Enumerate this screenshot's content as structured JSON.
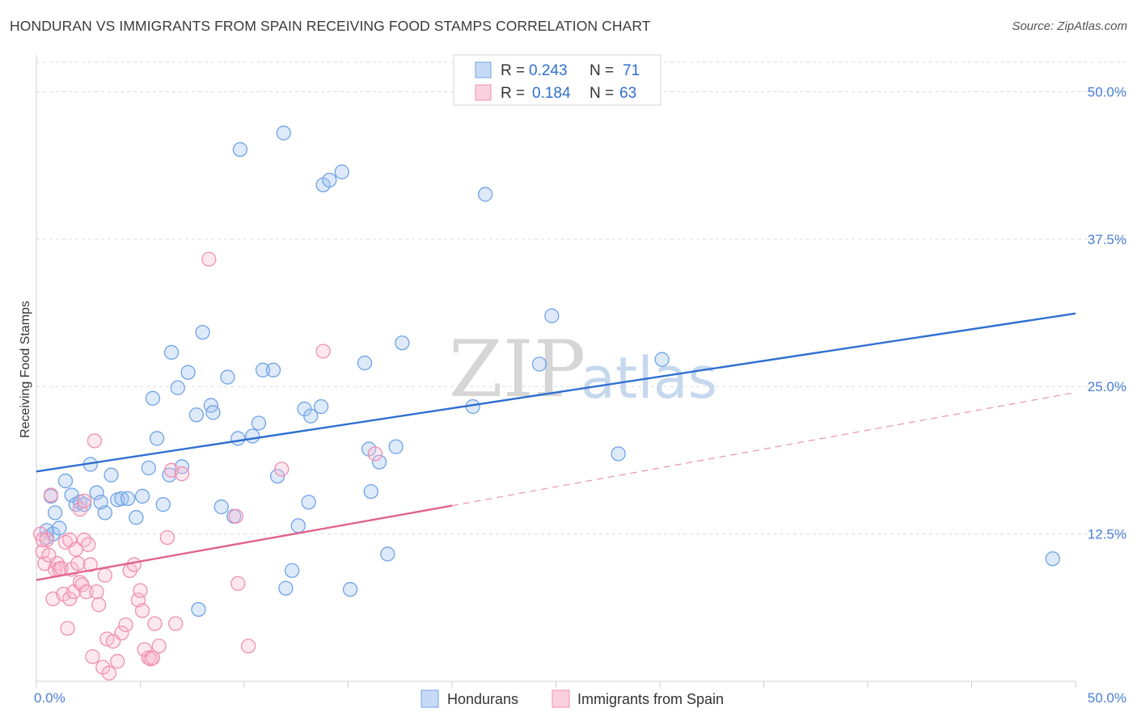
{
  "title": "HONDURAN VS IMMIGRANTS FROM SPAIN RECEIVING FOOD STAMPS CORRELATION CHART",
  "source": "Source: ZipAtlas.com",
  "watermark": {
    "zip": "ZIP",
    "atlas": "atlas"
  },
  "colors": {
    "blue": "#6fa3e6",
    "blue_line": "#2f6fd0",
    "pink": "#f08fb0",
    "pink_line": "#e0648e",
    "axis_label": "#4a7fd4"
  },
  "legend": {
    "r_label": "R = ",
    "n_label": "N = ",
    "rows": [
      {
        "r": "0.243",
        "n": "71"
      },
      {
        "r": "0.184",
        "n": "63"
      }
    ]
  },
  "chart_data": {
    "type": "scatter",
    "ylabel": "Receiving Food Stamps",
    "xlim": [
      0,
      50
    ],
    "ylim": [
      0,
      52.5
    ],
    "x_tick_labels": [
      "0.0%",
      "50.0%"
    ],
    "y_ticks": [
      12.5,
      25.0,
      37.5,
      50.0
    ],
    "y_tick_labels": [
      "12.5%",
      "25.0%",
      "37.5%",
      "50.0%"
    ],
    "grid": true,
    "legend_position": "top-center",
    "series": [
      {
        "name": "Hondurans",
        "trend": {
          "x": [
            0,
            50
          ],
          "y": [
            17.8,
            31.2
          ],
          "style": "solid"
        },
        "points": [
          [
            0.5,
            12.8
          ],
          [
            0.5,
            12.2
          ],
          [
            0.7,
            15.7
          ],
          [
            0.8,
            12.5
          ],
          [
            0.9,
            14.3
          ],
          [
            1.1,
            13.0
          ],
          [
            1.4,
            17.0
          ],
          [
            1.7,
            15.8
          ],
          [
            1.9,
            15.0
          ],
          [
            2.1,
            15.2
          ],
          [
            2.3,
            15.0
          ],
          [
            2.6,
            18.4
          ],
          [
            2.9,
            16.0
          ],
          [
            3.1,
            15.2
          ],
          [
            3.3,
            14.3
          ],
          [
            3.6,
            17.5
          ],
          [
            3.9,
            15.4
          ],
          [
            4.1,
            15.5
          ],
          [
            4.4,
            15.5
          ],
          [
            4.8,
            13.9
          ],
          [
            5.1,
            15.7
          ],
          [
            5.4,
            18.1
          ],
          [
            5.6,
            24.0
          ],
          [
            5.8,
            20.6
          ],
          [
            6.1,
            15.0
          ],
          [
            6.4,
            17.5
          ],
          [
            6.5,
            27.9
          ],
          [
            6.8,
            24.9
          ],
          [
            7.0,
            18.2
          ],
          [
            7.3,
            26.2
          ],
          [
            7.8,
            6.1
          ],
          [
            7.7,
            22.6
          ],
          [
            8.0,
            29.6
          ],
          [
            8.4,
            23.4
          ],
          [
            8.5,
            22.8
          ],
          [
            8.9,
            14.8
          ],
          [
            9.2,
            25.8
          ],
          [
            9.5,
            14.0
          ],
          [
            9.7,
            20.6
          ],
          [
            9.8,
            45.1
          ],
          [
            10.4,
            20.8
          ],
          [
            10.7,
            21.9
          ],
          [
            10.9,
            26.4
          ],
          [
            11.4,
            26.4
          ],
          [
            11.6,
            17.4
          ],
          [
            11.9,
            46.5
          ],
          [
            12.0,
            7.9
          ],
          [
            12.3,
            9.4
          ],
          [
            12.6,
            13.2
          ],
          [
            12.9,
            23.1
          ],
          [
            13.1,
            15.2
          ],
          [
            13.2,
            22.5
          ],
          [
            13.7,
            23.3
          ],
          [
            13.8,
            42.1
          ],
          [
            14.1,
            42.5
          ],
          [
            14.7,
            43.2
          ],
          [
            15.1,
            7.8
          ],
          [
            15.8,
            27.0
          ],
          [
            16.0,
            19.7
          ],
          [
            16.1,
            16.1
          ],
          [
            16.5,
            18.6
          ],
          [
            16.9,
            10.8
          ],
          [
            17.3,
            19.9
          ],
          [
            17.6,
            28.7
          ],
          [
            21.0,
            23.3
          ],
          [
            21.6,
            41.3
          ],
          [
            24.2,
            26.9
          ],
          [
            24.8,
            31.0
          ],
          [
            28.0,
            19.3
          ],
          [
            30.1,
            27.3
          ],
          [
            48.9,
            10.4
          ]
        ]
      },
      {
        "name": "Immigrants from Spain",
        "trend": {
          "x": [
            0,
            20
          ],
          "y": [
            8.6,
            14.9
          ],
          "style": "solid"
        },
        "trend_ext": {
          "x": [
            20,
            50
          ],
          "y": [
            14.9,
            24.5
          ],
          "style": "dashed"
        },
        "points": [
          [
            0.2,
            12.5
          ],
          [
            0.3,
            11.0
          ],
          [
            0.4,
            10.0
          ],
          [
            0.5,
            12.0
          ],
          [
            0.6,
            10.7
          ],
          [
            0.7,
            15.8
          ],
          [
            0.8,
            7.0
          ],
          [
            0.9,
            9.5
          ],
          [
            1.0,
            10.0
          ],
          [
            1.1,
            9.5
          ],
          [
            1.2,
            9.6
          ],
          [
            1.3,
            7.4
          ],
          [
            1.4,
            11.8
          ],
          [
            1.5,
            4.5
          ],
          [
            1.6,
            7.0
          ],
          [
            1.6,
            12.0
          ],
          [
            1.7,
            9.5
          ],
          [
            1.8,
            7.6
          ],
          [
            1.9,
            11.2
          ],
          [
            2.0,
            10.0
          ],
          [
            2.1,
            14.6
          ],
          [
            2.1,
            8.4
          ],
          [
            2.2,
            8.2
          ],
          [
            2.3,
            15.3
          ],
          [
            2.3,
            12.0
          ],
          [
            2.4,
            7.6
          ],
          [
            2.5,
            11.6
          ],
          [
            2.6,
            9.9
          ],
          [
            2.7,
            2.1
          ],
          [
            2.8,
            20.4
          ],
          [
            2.9,
            7.6
          ],
          [
            3.0,
            6.5
          ],
          [
            3.2,
            1.2
          ],
          [
            3.3,
            9.0
          ],
          [
            3.4,
            3.6
          ],
          [
            3.5,
            0.7
          ],
          [
            3.7,
            3.4
          ],
          [
            3.9,
            1.7
          ],
          [
            4.1,
            4.1
          ],
          [
            4.3,
            4.8
          ],
          [
            4.5,
            9.4
          ],
          [
            4.7,
            9.9
          ],
          [
            4.9,
            6.9
          ],
          [
            5.0,
            7.7
          ],
          [
            5.1,
            6.0
          ],
          [
            5.2,
            2.7
          ],
          [
            5.4,
            2.0
          ],
          [
            5.5,
            1.9
          ],
          [
            5.6,
            2.0
          ],
          [
            5.7,
            4.9
          ],
          [
            5.9,
            3.0
          ],
          [
            6.3,
            12.2
          ],
          [
            6.5,
            17.9
          ],
          [
            6.7,
            4.9
          ],
          [
            7.0,
            17.6
          ],
          [
            8.3,
            35.8
          ],
          [
            9.6,
            14.0
          ],
          [
            9.7,
            8.3
          ],
          [
            10.2,
            3.0
          ],
          [
            11.8,
            18.0
          ],
          [
            13.8,
            28.0
          ],
          [
            16.3,
            19.3
          ],
          [
            0.3,
            12.0
          ]
        ]
      }
    ]
  },
  "bottom_legend": [
    {
      "label": "Hondurans"
    },
    {
      "label": "Immigrants from Spain"
    }
  ]
}
